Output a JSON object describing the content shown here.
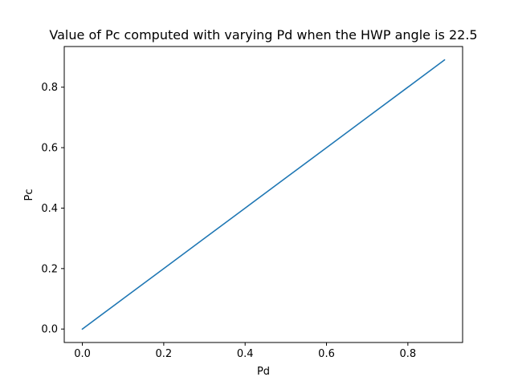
{
  "chart_data": {
    "type": "line",
    "title": "Value of Pc computed with varying Pd when the HWP angle is 22.5",
    "xlabel": "Pd",
    "ylabel": "Pc",
    "xlim": [
      -0.0445,
      0.9345
    ],
    "ylim": [
      -0.0445,
      0.9345
    ],
    "xticks": [
      0.0,
      0.2,
      0.4,
      0.6,
      0.8
    ],
    "yticks": [
      0.0,
      0.2,
      0.4,
      0.6,
      0.8
    ],
    "xtick_labels": [
      "0.0",
      "0.2",
      "0.4",
      "0.6",
      "0.8"
    ],
    "ytick_labels": [
      "0.0",
      "0.2",
      "0.4",
      "0.6",
      "0.8"
    ],
    "grid": false,
    "series": [
      {
        "color": "#1f77b4",
        "x": [
          0.0,
          0.1,
          0.2,
          0.3,
          0.4,
          0.5,
          0.6,
          0.7,
          0.8,
          0.89
        ],
        "y": [
          0.0,
          0.1,
          0.2,
          0.3,
          0.4,
          0.5,
          0.6,
          0.7,
          0.8,
          0.89
        ]
      }
    ]
  }
}
